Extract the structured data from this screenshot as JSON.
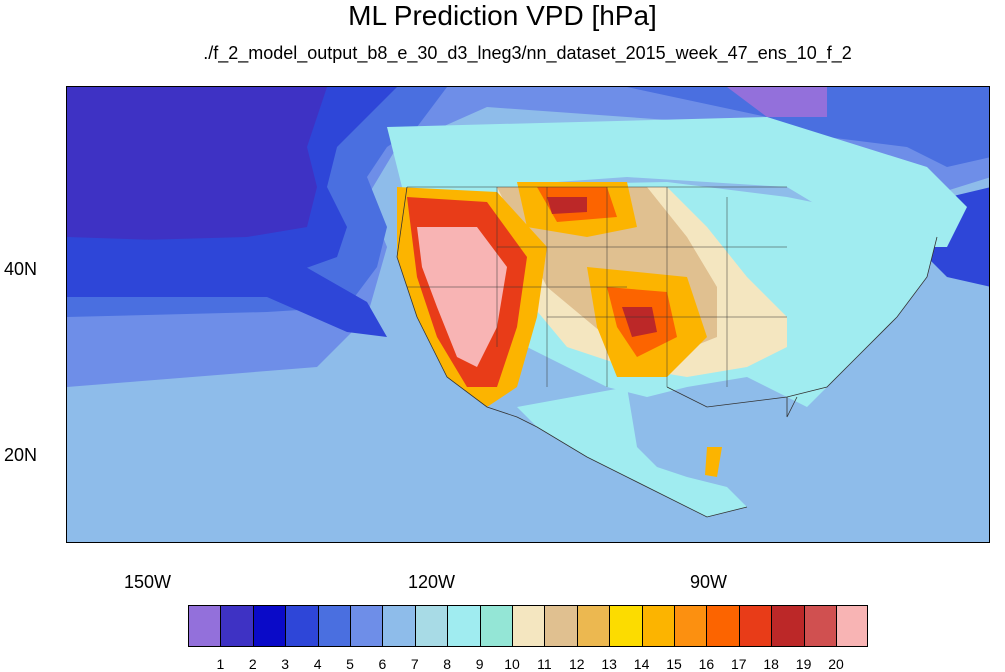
{
  "title": "ML Prediction VPD [hPa]",
  "subtitle": "./f_2_model_output_b8_e_30_d3_lneg3/nn_dataset_2015_week_47_ens_10_f_2",
  "axes": {
    "lon_labels": [
      "150W",
      "120W",
      "90W"
    ],
    "lat_labels": [
      "40N",
      "20N"
    ],
    "lon_range": [
      -159,
      -61
    ],
    "lat_range": [
      11,
      58
    ]
  },
  "colorbar": {
    "colors": [
      "#9370db",
      "#3e32c4",
      "#0a0ac8",
      "#2e46d8",
      "#4a6fe0",
      "#6e8ee8",
      "#8ebcea",
      "#a8dbe6",
      "#a0ecf0",
      "#94e6d6",
      "#f4e6c0",
      "#e0c090",
      "#ecb850",
      "#fcdc00",
      "#fcb400",
      "#fc9010",
      "#fc6400",
      "#e83c18",
      "#bc2828",
      "#d05050",
      "#f8b4b4"
    ],
    "labels": [
      "1",
      "2",
      "3",
      "4",
      "5",
      "6",
      "7",
      "8",
      "9",
      "10",
      "11",
      "12",
      "13",
      "14",
      "15",
      "16",
      "17",
      "18",
      "19",
      "20"
    ]
  },
  "map_colors": {
    "ocean_deep": "#3e32c4",
    "ocean": "#2e46d8",
    "ocean_mid": "#4a6fe0",
    "ocean_light": "#6e8ee8",
    "ocean_pale": "#8ebcea",
    "land_cool": "#a0ecf0",
    "land_teal": "#94e6d6",
    "land_tan": "#f4e6c0",
    "land_beige": "#e0c090",
    "orange": "#fcb400",
    "deep_orange": "#fc9010",
    "red": "#e83c18",
    "dark_red": "#bc2828",
    "pink": "#f8b4b4",
    "boundary": "#333333"
  }
}
